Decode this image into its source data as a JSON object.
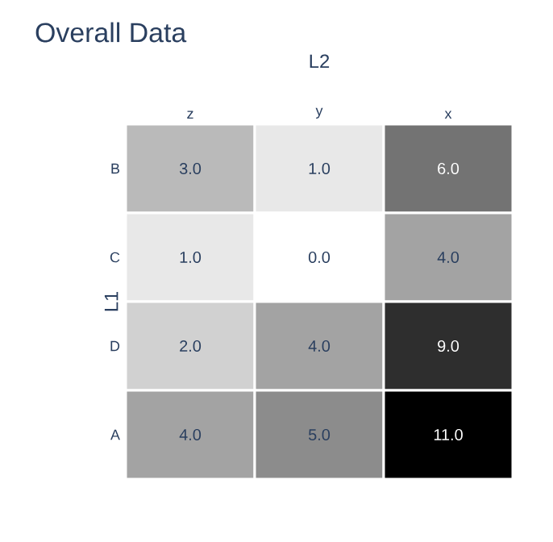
{
  "chart_data": {
    "type": "heatmap",
    "title": "Overall Data",
    "xlabel": "L2",
    "ylabel": "L1",
    "categories": [
      "z",
      "y",
      "x"
    ],
    "y_categories": [
      "B",
      "C",
      "D",
      "A"
    ],
    "cells": [
      [
        3.0,
        1.0,
        6.0
      ],
      [
        1.0,
        0.0,
        4.0
      ],
      [
        2.0,
        4.0,
        9.0
      ],
      [
        4.0,
        5.0,
        11.0
      ]
    ],
    "cell_labels": [
      [
        "3.0",
        "1.0",
        "6.0"
      ],
      [
        "1.0",
        "0.0",
        "4.0"
      ],
      [
        "2.0",
        "4.0",
        "9.0"
      ],
      [
        "4.0",
        "5.0",
        "11.0"
      ]
    ],
    "data_labels": true
  }
}
